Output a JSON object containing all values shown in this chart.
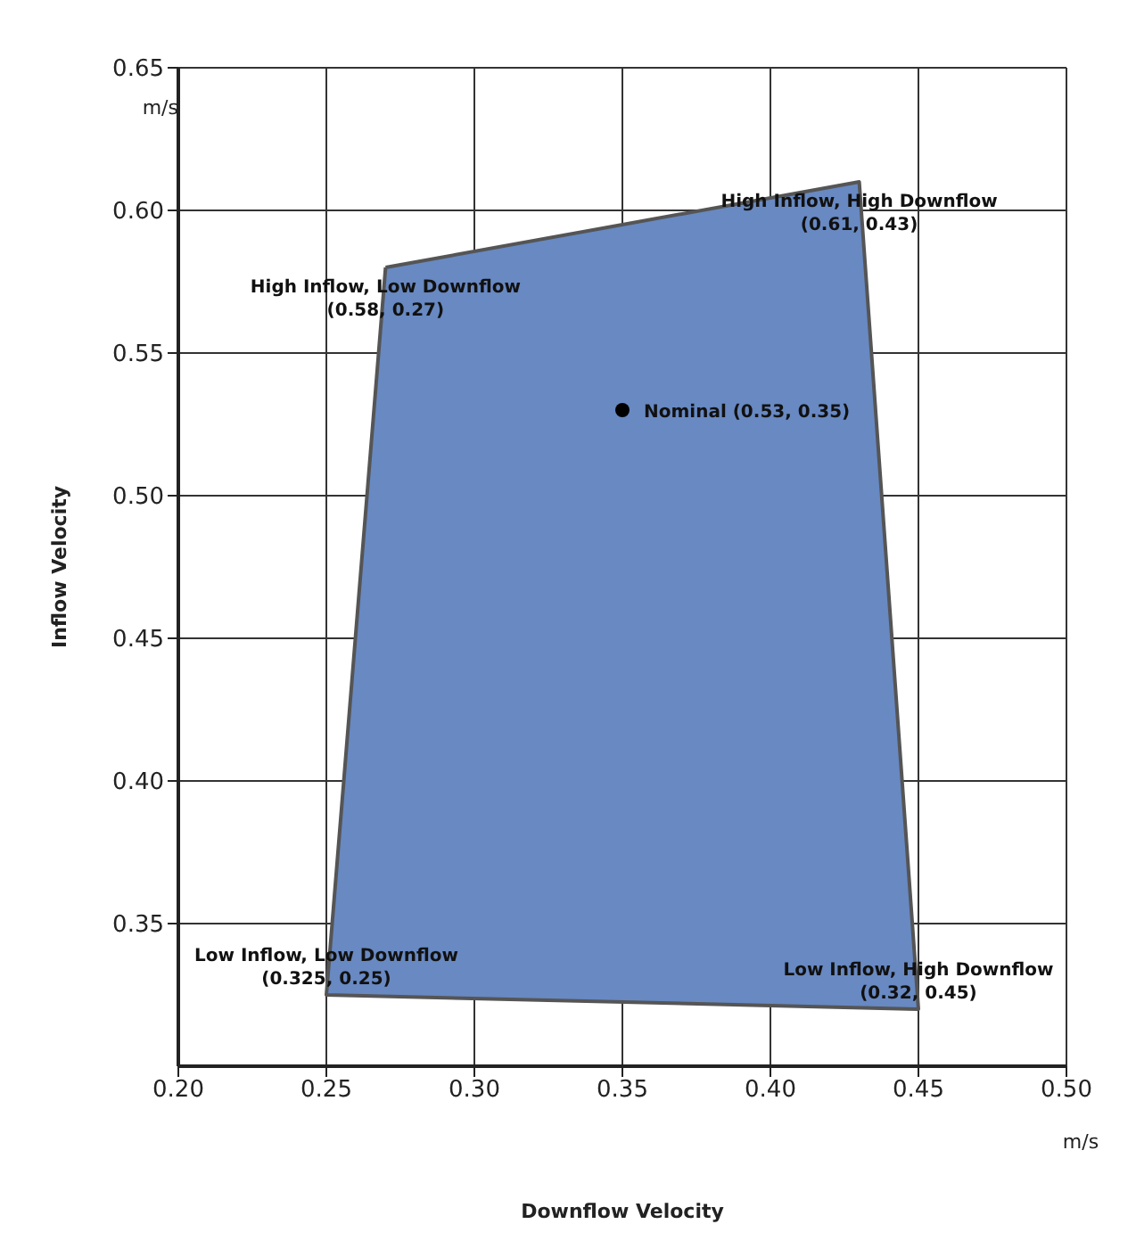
{
  "chart_data": {
    "type": "area",
    "xlabel": "Downflow Velocity",
    "ylabel": "Inflow Velocity",
    "xlim": [
      0.2,
      0.5
    ],
    "ylim": [
      0.3,
      0.65
    ],
    "xticks": [
      {
        "value": 0.2,
        "label": "0.20"
      },
      {
        "value": 0.25,
        "label": "0.25"
      },
      {
        "value": 0.3,
        "label": "0.30"
      },
      {
        "value": 0.35,
        "label": "0.35"
      },
      {
        "value": 0.4,
        "label": "0.40"
      },
      {
        "value": 0.45,
        "label": "0.45"
      },
      {
        "value": 0.5,
        "label": "0.50"
      }
    ],
    "yticks": [
      {
        "value": 0.35,
        "label": "0.35"
      },
      {
        "value": 0.4,
        "label": "0.40"
      },
      {
        "value": 0.45,
        "label": "0.45"
      },
      {
        "value": 0.5,
        "label": "0.50"
      },
      {
        "value": 0.55,
        "label": "0.55"
      },
      {
        "value": 0.6,
        "label": "0.60"
      },
      {
        "value": 0.65,
        "label": "0.65"
      }
    ],
    "grid": true,
    "series": [
      {
        "color": "#6889c2",
        "x": [
          0.27,
          0.43,
          0.45,
          0.25,
          0.27
        ],
        "values": [
          0.58,
          0.61,
          0.32,
          0.325,
          0.58
        ]
      },
      {
        "type": "scatter",
        "color": "#000000",
        "x": [
          0.35
        ],
        "values": [
          0.53
        ]
      }
    ],
    "annotations": [
      "m/s",
      "m/s",
      {
        "text": "High Inflow, Low Downflow\n(0.58, 0.27)",
        "x": 0.27,
        "y": 0.58
      },
      {
        "text": "High Inflow, High Downflow\n(0.61, 0.43)",
        "x": 0.43,
        "y": 0.61
      },
      {
        "text": "Low Inflow, Low Downflow\n(0.325, 0.25)",
        "x": 0.25,
        "y": 0.325
      },
      {
        "text": "Low Inflow, High Downflow\n(0.32, 0.45)",
        "x": 0.45,
        "y": 0.32
      },
      {
        "text": "Nominal (0.53, 0.35)",
        "x": 0.35,
        "y": 0.53
      }
    ]
  }
}
